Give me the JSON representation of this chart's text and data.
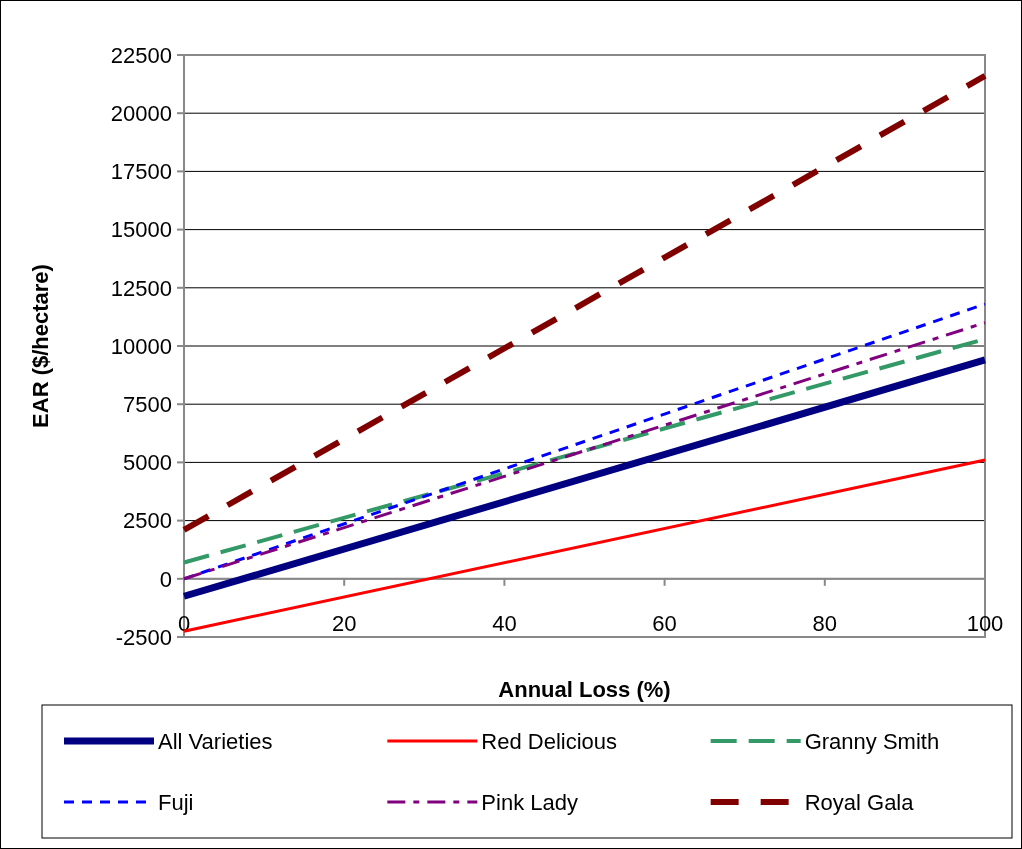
{
  "chart_data": {
    "type": "line",
    "xlabel": "Annual Loss (%)",
    "ylabel": "EAR ($/hectare)",
    "xlim": [
      0,
      100
    ],
    "xticks": [
      0,
      20,
      40,
      60,
      80,
      100
    ],
    "ylim": [
      -2500,
      22500
    ],
    "yticks": [
      -2500,
      0,
      2500,
      5000,
      7500,
      10000,
      12500,
      15000,
      17500,
      20000,
      22500
    ],
    "grid": "y",
    "legend": "bottom",
    "x": [
      0,
      100
    ],
    "series": [
      {
        "name": "All Varieties",
        "color": "#000080",
        "values": [
          -750,
          9400
        ],
        "line_style": "solid"
      },
      {
        "name": "Red Delicious",
        "color": "#ff0000",
        "values": [
          -2250,
          5100
        ],
        "line_style": "solid"
      },
      {
        "name": "Granny Smith",
        "color": "#339966",
        "values": [
          700,
          10300
        ],
        "line_style": "dashed"
      },
      {
        "name": "Fuji",
        "color": "#0000ff",
        "values": [
          0,
          11800
        ],
        "line_style": "dotted"
      },
      {
        "name": "Pink Lady",
        "color": "#800080",
        "values": [
          0,
          11000
        ],
        "line_style": "dashed"
      },
      {
        "name": "Royal Gala",
        "color": "#800000",
        "values": [
          2100,
          21600
        ],
        "line_style": "dashed"
      }
    ]
  }
}
